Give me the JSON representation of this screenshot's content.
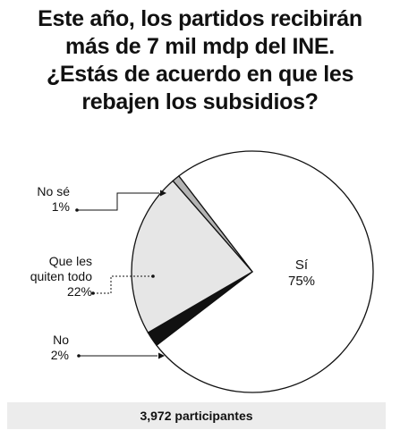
{
  "title_lines": [
    "Este año, los partidos recibirán",
    "más de 7 mil mdp del INE.",
    "¿Estás de acuerdo en que les",
    "rebajen los subsidios?"
  ],
  "chart_data": {
    "type": "pie",
    "title": "Este año, los partidos recibirán más de 7 mil mdp del INE. ¿Estás de acuerdo en que les rebajen los subsidios?",
    "slices": [
      {
        "label": "Sí",
        "value": 75,
        "display": "75%",
        "color": "#ffffff"
      },
      {
        "label": "No",
        "value": 2,
        "display": "2%",
        "color": "#111111"
      },
      {
        "label": "Que les quiten todo",
        "value": 22,
        "display": "22%",
        "color": "#e6e6e6"
      },
      {
        "label": "No sé",
        "value": 1,
        "display": "1%",
        "color": "#b4b4b4"
      }
    ],
    "label_lines": {
      "si": [
        "Sí",
        "75%"
      ],
      "no": [
        "No",
        "2%"
      ],
      "quiten": [
        "Que les",
        "quiten todo",
        "22%"
      ],
      "nose": [
        "No sé",
        "1%"
      ]
    }
  },
  "footer": "3,972 participantes"
}
